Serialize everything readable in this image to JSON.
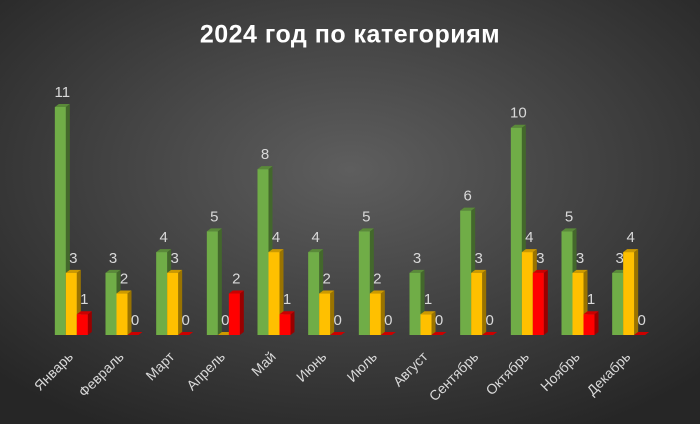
{
  "chart_data": {
    "type": "bar",
    "title": "2024 год по категориям",
    "categories": [
      "Январь",
      "Февраль",
      "Март",
      "Апрель",
      "Май",
      "Июнь",
      "Июль",
      "Август",
      "Сентябрь",
      "Октябрь",
      "Ноябрь",
      "Декабрь"
    ],
    "series": [
      {
        "color": "#70ad47",
        "values": [
          11,
          3,
          4,
          5,
          8,
          4,
          5,
          3,
          6,
          10,
          5,
          3
        ]
      },
      {
        "color": "#ffc000",
        "values": [
          3,
          2,
          3,
          0,
          4,
          2,
          2,
          1,
          3,
          4,
          3,
          4
        ]
      },
      {
        "color": "#ff0000",
        "values": [
          1,
          0,
          0,
          2,
          1,
          0,
          0,
          0,
          0,
          3,
          1,
          0
        ]
      }
    ]
  }
}
